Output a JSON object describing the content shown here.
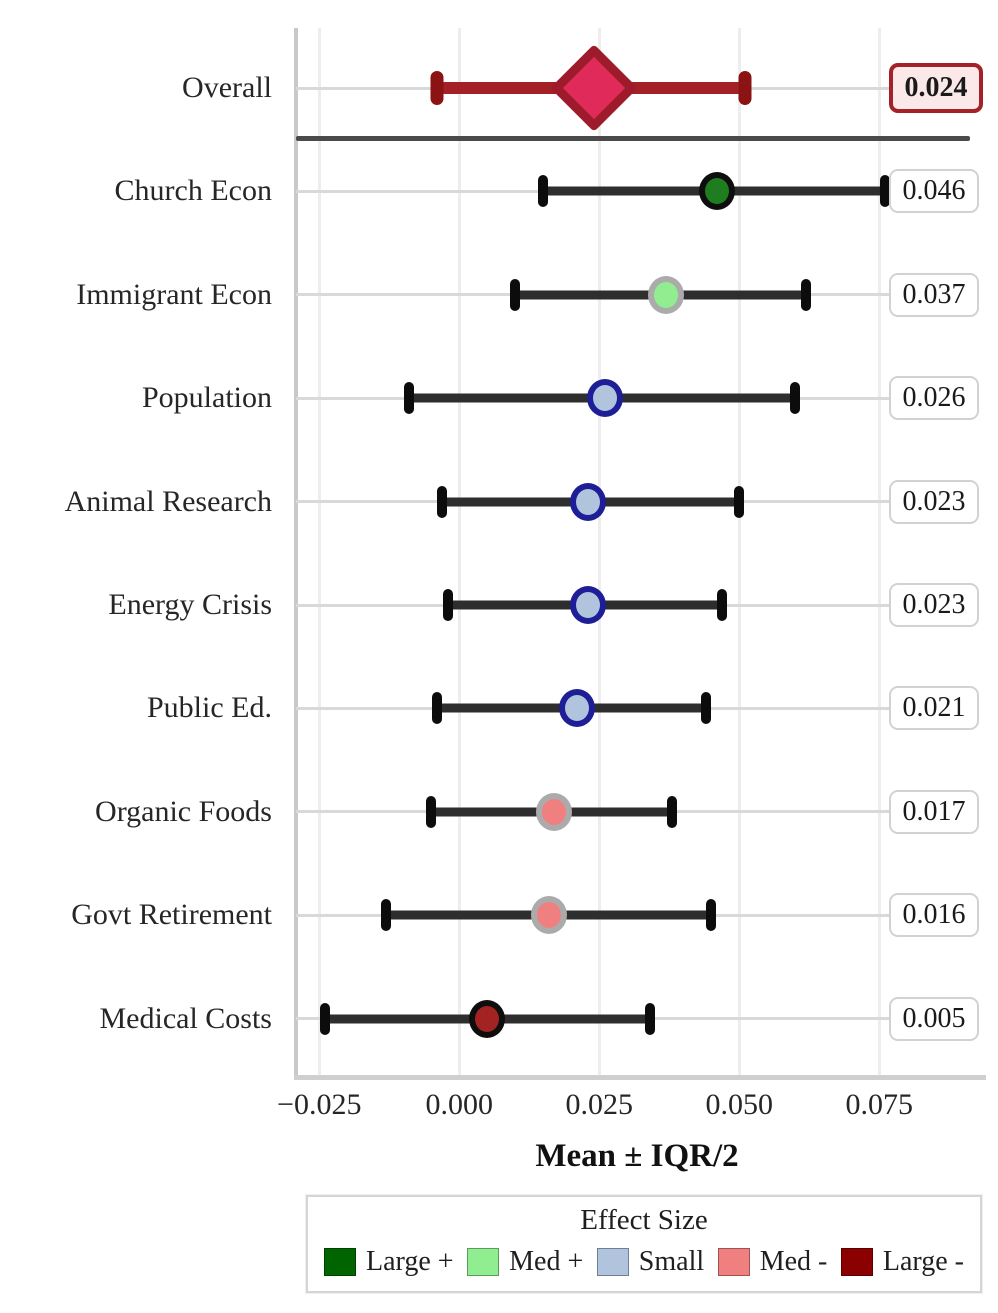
{
  "chart_data": {
    "type": "scatter",
    "subtype": "forest-dot-whisker",
    "xlabel": "Mean ± IQR/2",
    "xlim": [
      -0.0288,
      0.0921
    ],
    "x_ticks": [
      {
        "label": "−0.025",
        "value": -0.025
      },
      {
        "label": "0.000",
        "value": 0.0
      },
      {
        "label": "0.025",
        "value": 0.025
      },
      {
        "label": "0.050",
        "value": 0.05
      },
      {
        "label": "0.075",
        "value": 0.075
      }
    ],
    "grid": true,
    "rows": [
      {
        "label": "Overall",
        "value": 0.024,
        "value_label": "0.024",
        "lo": -0.004,
        "hi": 0.051,
        "marker": "diamond",
        "category": "overall"
      },
      {
        "label": "Church Econ",
        "value": 0.046,
        "value_label": "0.046",
        "lo": 0.015,
        "hi": 0.076,
        "marker": "circle",
        "category": "large_pos"
      },
      {
        "label": "Immigrant Econ",
        "value": 0.037,
        "value_label": "0.037",
        "lo": 0.01,
        "hi": 0.062,
        "marker": "circle",
        "category": "med_pos"
      },
      {
        "label": "Population",
        "value": 0.026,
        "value_label": "0.026",
        "lo": -0.009,
        "hi": 0.06,
        "marker": "circle",
        "category": "small"
      },
      {
        "label": "Animal Research",
        "value": 0.023,
        "value_label": "0.023",
        "lo": -0.003,
        "hi": 0.05,
        "marker": "circle",
        "category": "small"
      },
      {
        "label": "Energy Crisis",
        "value": 0.023,
        "value_label": "0.023",
        "lo": -0.002,
        "hi": 0.047,
        "marker": "circle",
        "category": "small"
      },
      {
        "label": "Public Ed.",
        "value": 0.021,
        "value_label": "0.021",
        "lo": -0.004,
        "hi": 0.044,
        "marker": "circle",
        "category": "small"
      },
      {
        "label": "Organic Foods",
        "value": 0.017,
        "value_label": "0.017",
        "lo": -0.005,
        "hi": 0.038,
        "marker": "circle",
        "category": "med_neg"
      },
      {
        "label": "Govt Retirement",
        "value": 0.016,
        "value_label": "0.016",
        "lo": -0.013,
        "hi": 0.045,
        "marker": "circle",
        "category": "med_neg"
      },
      {
        "label": "Medical Costs",
        "value": 0.005,
        "value_label": "0.005",
        "lo": -0.024,
        "hi": 0.034,
        "marker": "circle",
        "category": "large_neg"
      }
    ],
    "category_styles": {
      "overall": {
        "fill": "#e02a5a",
        "edge": "#9e1b2c",
        "bar": "#a32026",
        "cap": "#8b1314"
      },
      "large_pos": {
        "fill": "#1e7d1e",
        "edge": "#0e0e0e"
      },
      "med_pos": {
        "fill": "#90ee90",
        "edge": "#ababab"
      },
      "small": {
        "fill": "#b0c4de",
        "edge": "#1e1e96"
      },
      "med_neg": {
        "fill": "#f08080",
        "edge": "#ababab"
      },
      "large_neg": {
        "fill": "#a32222",
        "edge": "#0e0e0e"
      }
    },
    "bar_color": "#2e2e2e",
    "cap_color": "#0c0c0c",
    "legend": {
      "title": "Effect Size",
      "position": "bottom",
      "entries": [
        {
          "label": "Large +",
          "color": "#006400"
        },
        {
          "label": "Med +",
          "color": "#90ee90"
        },
        {
          "label": "Small",
          "color": "#b0c4de"
        },
        {
          "label": "Med -",
          "color": "#f08080"
        },
        {
          "label": "Large -",
          "color": "#8b0000"
        }
      ]
    }
  }
}
